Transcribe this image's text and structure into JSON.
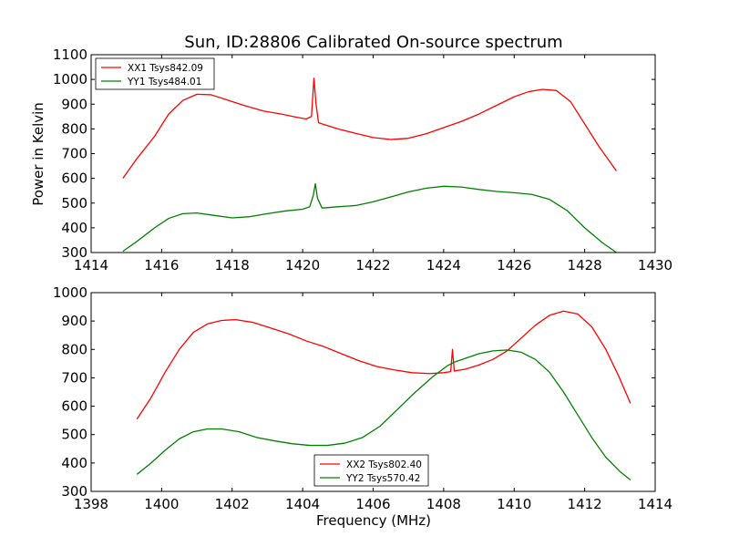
{
  "figure": {
    "title": "Sun, ID:28806 Calibrated On-source spectrum",
    "xlabel": "Frequency (MHz)",
    "ylabel": "Power in Kelvin"
  },
  "chart_data": [
    {
      "type": "line",
      "title": "Sun, ID:28806 Calibrated On-source spectrum",
      "xlabel": "",
      "ylabel": "Power in Kelvin",
      "xlim": [
        1414,
        1430
      ],
      "ylim": [
        300,
        1100
      ],
      "xticks": [
        "1414",
        "1416",
        "1418",
        "1420",
        "1422",
        "1424",
        "1426",
        "1428",
        "1430"
      ],
      "yticks": [
        "300",
        "400",
        "500",
        "600",
        "700",
        "800",
        "900",
        "1000",
        "1100"
      ],
      "grid": false,
      "legend_position": "top-left",
      "series": [
        {
          "name": "XX1 Tsys842.09",
          "color": "#ff0000",
          "x": [
            1414.9,
            1415.3,
            1415.8,
            1416.2,
            1416.6,
            1417.0,
            1417.4,
            1417.9,
            1418.4,
            1418.9,
            1419.4,
            1419.8,
            1420.1,
            1420.25,
            1420.32,
            1420.38,
            1420.45,
            1420.6,
            1421.0,
            1421.5,
            1422.0,
            1422.5,
            1423.0,
            1423.5,
            1424.0,
            1424.5,
            1425.0,
            1425.5,
            1426.0,
            1426.4,
            1426.8,
            1427.2,
            1427.6,
            1428.0,
            1428.4,
            1428.9
          ],
          "y": [
            600,
            680,
            770,
            860,
            915,
            940,
            938,
            915,
            892,
            872,
            860,
            848,
            840,
            850,
            1005,
            900,
            825,
            818,
            800,
            782,
            765,
            757,
            762,
            780,
            805,
            830,
            860,
            895,
            930,
            950,
            960,
            955,
            910,
            820,
            730,
            630
          ]
        },
        {
          "name": "YY1 Tsys484.01",
          "color": "#008000",
          "x": [
            1414.9,
            1415.3,
            1415.8,
            1416.2,
            1416.6,
            1417.0,
            1417.5,
            1418.0,
            1418.5,
            1419.0,
            1419.5,
            1420.0,
            1420.2,
            1420.3,
            1420.36,
            1420.42,
            1420.55,
            1421.0,
            1421.5,
            1422.0,
            1422.5,
            1423.0,
            1423.5,
            1424.0,
            1424.5,
            1425.0,
            1425.5,
            1426.0,
            1426.5,
            1427.0,
            1427.5,
            1428.0,
            1428.5,
            1428.9
          ],
          "y": [
            305,
            345,
            400,
            438,
            457,
            460,
            450,
            440,
            445,
            457,
            468,
            475,
            485,
            530,
            578,
            520,
            480,
            485,
            490,
            505,
            525,
            545,
            560,
            568,
            565,
            555,
            547,
            542,
            535,
            515,
            470,
            400,
            340,
            300
          ]
        }
      ]
    },
    {
      "type": "line",
      "title": "",
      "xlabel": "Frequency (MHz)",
      "ylabel": "",
      "xlim": [
        1398,
        1414
      ],
      "ylim": [
        300,
        1000
      ],
      "xticks": [
        "1398",
        "1400",
        "1402",
        "1404",
        "1406",
        "1408",
        "1410",
        "1412",
        "1414"
      ],
      "yticks": [
        "300",
        "400",
        "500",
        "600",
        "700",
        "800",
        "900",
        "1000"
      ],
      "grid": false,
      "legend_position": "bottom-center",
      "series": [
        {
          "name": "XX2 Tsys802.40",
          "color": "#ff0000",
          "x": [
            1399.3,
            1399.7,
            1400.1,
            1400.5,
            1400.9,
            1401.3,
            1401.7,
            1402.1,
            1402.6,
            1403.1,
            1403.6,
            1404.1,
            1404.6,
            1405.1,
            1405.6,
            1406.1,
            1406.6,
            1407.1,
            1407.6,
            1408.0,
            1408.2,
            1408.25,
            1408.3,
            1408.6,
            1409.0,
            1409.4,
            1409.8,
            1410.2,
            1410.6,
            1411.0,
            1411.4,
            1411.8,
            1412.2,
            1412.6,
            1412.95,
            1413.3
          ],
          "y": [
            555,
            630,
            720,
            800,
            860,
            890,
            902,
            905,
            895,
            875,
            855,
            830,
            810,
            785,
            760,
            740,
            728,
            718,
            715,
            718,
            722,
            800,
            724,
            730,
            745,
            765,
            795,
            840,
            885,
            920,
            935,
            925,
            880,
            800,
            710,
            610
          ]
        },
        {
          "name": "YY2 Tsys570.42",
          "color": "#008000",
          "x": [
            1399.3,
            1399.7,
            1400.1,
            1400.5,
            1400.9,
            1401.3,
            1401.7,
            1402.2,
            1402.7,
            1403.2,
            1403.7,
            1404.2,
            1404.7,
            1405.2,
            1405.7,
            1406.2,
            1406.7,
            1407.2,
            1407.7,
            1408.1,
            1408.3,
            1408.6,
            1409.0,
            1409.4,
            1409.8,
            1410.2,
            1410.6,
            1411.0,
            1411.4,
            1411.8,
            1412.2,
            1412.6,
            1413.0,
            1413.3
          ],
          "y": [
            360,
            400,
            445,
            485,
            510,
            520,
            520,
            510,
            490,
            478,
            468,
            462,
            462,
            470,
            490,
            530,
            590,
            650,
            705,
            742,
            755,
            768,
            785,
            795,
            798,
            790,
            765,
            720,
            650,
            570,
            490,
            420,
            370,
            340
          ]
        }
      ]
    }
  ]
}
